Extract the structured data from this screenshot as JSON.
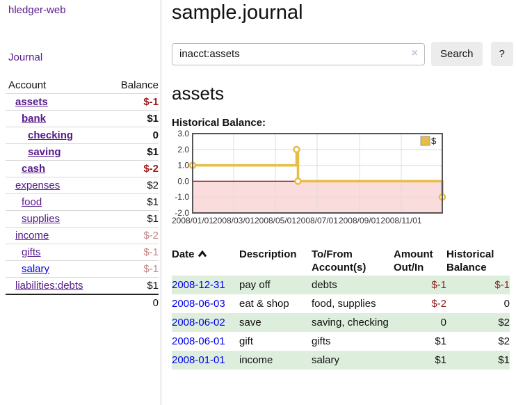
{
  "app": {
    "brand": "hledger-web",
    "nav_journal": "Journal"
  },
  "sidebar": {
    "accounts_header": {
      "account": "Account",
      "balance": "Balance"
    },
    "accounts": [
      {
        "name": "assets",
        "depth": 1,
        "bold": true,
        "balance": "$-1",
        "balance_style": "neg-dark",
        "link_style": "visited"
      },
      {
        "name": "bank",
        "depth": 2,
        "bold": true,
        "balance": "$1",
        "balance_style": "pos",
        "link_style": "visited"
      },
      {
        "name": "checking",
        "depth": 3,
        "bold": true,
        "balance": "0",
        "balance_style": "pos",
        "link_style": "visited"
      },
      {
        "name": "saving",
        "depth": 3,
        "bold": true,
        "balance": "$1",
        "balance_style": "pos",
        "link_style": "visited"
      },
      {
        "name": "cash",
        "depth": 2,
        "bold": true,
        "balance": "$-2",
        "balance_style": "neg-dark",
        "link_style": "visited"
      },
      {
        "name": "expenses",
        "depth": 1,
        "bold": false,
        "balance": "$2",
        "balance_style": "pos",
        "link_style": "visited"
      },
      {
        "name": "food",
        "depth": 2,
        "bold": false,
        "balance": "$1",
        "balance_style": "pos",
        "link_style": "visited"
      },
      {
        "name": "supplies",
        "depth": 2,
        "bold": false,
        "balance": "$1",
        "balance_style": "pos",
        "link_style": "visited"
      },
      {
        "name": "income",
        "depth": 1,
        "bold": false,
        "balance": "$-2",
        "balance_style": "neg-light",
        "link_style": "visited"
      },
      {
        "name": "gifts",
        "depth": 2,
        "bold": false,
        "balance": "$-1",
        "balance_style": "neg-light",
        "link_style": "visited"
      },
      {
        "name": "salary",
        "depth": 2,
        "bold": false,
        "balance": "$-1",
        "balance_style": "neg-light",
        "link_style": "unvisited"
      },
      {
        "name": "liabilities:debts",
        "depth": 1,
        "bold": false,
        "balance": "$1",
        "balance_style": "pos",
        "link_style": "visited"
      }
    ],
    "total": "0"
  },
  "header": {
    "title": "sample.journal"
  },
  "search": {
    "value": "inacct:assets",
    "clear_icon": "×",
    "button_label": "Search",
    "help_label": "?"
  },
  "main": {
    "account_title": "assets",
    "chart_label": "Historical Balance:"
  },
  "chart_data": {
    "type": "line",
    "title": "Historical Balance:",
    "step": "after",
    "series": [
      {
        "name": "$",
        "color": "#e6bd45",
        "points": [
          [
            "2008-01-01",
            1
          ],
          [
            "2008-06-01",
            2
          ],
          [
            "2008-06-03",
            0
          ],
          [
            "2008-12-31",
            -1
          ]
        ]
      }
    ],
    "x_range": [
      "2008-01-01",
      "2008-12-31"
    ],
    "x_ticks": [
      "2008/01/01",
      "2008/03/01",
      "2008/05/01",
      "2008/07/01",
      "2008/09/01",
      "2008/11/01"
    ],
    "y_ticks": [
      3.0,
      2.0,
      1.0,
      0.0,
      -1.0,
      -2.0
    ],
    "ylim": [
      -2,
      3
    ],
    "grid": true,
    "legend": {
      "label": "$",
      "position": "top-right"
    },
    "negative_region_color": "#fbdcdc",
    "zero_line_color": "#8b0000"
  },
  "transactions": {
    "headers": {
      "date": "Date",
      "description": "Description",
      "tofrom_line1": "To/From",
      "tofrom_line2": "Account(s)",
      "amount_line1": "Amount",
      "amount_line2": "Out/In",
      "balance_line1": "Historical",
      "balance_line2": "Balance"
    },
    "rows": [
      {
        "date": "2008-12-31",
        "description": "pay off",
        "accounts": "debts",
        "amount": "$-1",
        "amount_neg": true,
        "balance": "$-1",
        "balance_neg": true
      },
      {
        "date": "2008-06-03",
        "description": "eat & shop",
        "accounts": "food, supplies",
        "amount": "$-2",
        "amount_neg": true,
        "balance": "0",
        "balance_neg": false
      },
      {
        "date": "2008-06-02",
        "description": "save",
        "accounts": "saving, checking",
        "amount": "0",
        "amount_neg": false,
        "balance": "$2",
        "balance_neg": false
      },
      {
        "date": "2008-06-01",
        "description": "gift",
        "accounts": "gifts",
        "amount": "$1",
        "amount_neg": false,
        "balance": "$2",
        "balance_neg": false
      },
      {
        "date": "2008-01-01",
        "description": "income",
        "accounts": "salary",
        "amount": "$1",
        "amount_neg": false,
        "balance": "$1",
        "balance_neg": false
      }
    ]
  },
  "colors": {
    "link_visited": "#551a8b",
    "link_unvisited": "#0000ee",
    "negative_bold": "#9b1a1a",
    "negative_light": "#c28585",
    "negative_table": "#8e1f1f",
    "row_stripe_green": "#ddeedd",
    "series_gold": "#e6bd45",
    "chart_negative_fill": "#fbdcdc",
    "chart_zero_line": "#8b0000",
    "button_bg": "#ececec"
  }
}
